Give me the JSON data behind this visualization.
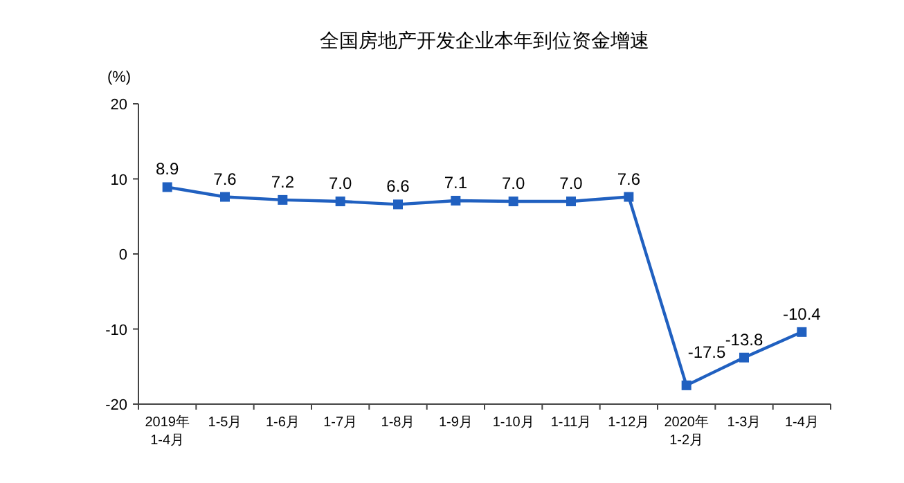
{
  "chart_data": {
    "type": "line",
    "title": "全国房地产开发企业本年到位资金增速",
    "ylabel": "(%)",
    "categories": [
      "2019年\n1-4月",
      "1-5月",
      "1-6月",
      "1-7月",
      "1-8月",
      "1-9月",
      "1-10月",
      "1-11月",
      "1-12月",
      "2020年\n1-2月",
      "1-3月",
      "1-4月"
    ],
    "series": [
      {
        "color": "#2060c0",
        "values": [
          8.9,
          7.6,
          7.2,
          7.0,
          6.6,
          7.1,
          7.0,
          7.0,
          7.6,
          -17.5,
          -13.8,
          -10.4
        ],
        "value_labels": [
          "8.9",
          "7.6",
          "7.2",
          "7.0",
          "6.6",
          "7.1",
          "7.0",
          "7.0",
          "7.6",
          "-17.5",
          "-13.8",
          "-10.4"
        ]
      }
    ],
    "ylim": [
      -20,
      20
    ],
    "yticks": [
      -20,
      -10,
      0,
      10,
      20
    ],
    "marker": "square",
    "line_style": "solid",
    "grid": false
  }
}
